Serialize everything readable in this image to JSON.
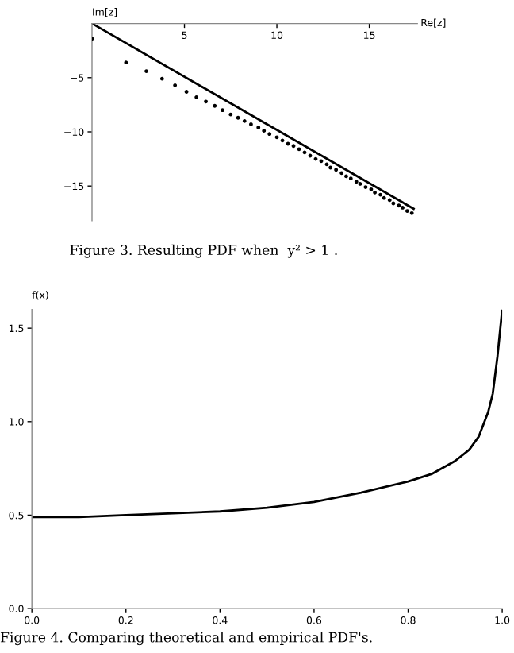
{
  "chart_data": [
    {
      "type": "scatter",
      "xlabel": "Re[z]",
      "ylabel": "Im[z]",
      "xlim": [
        0,
        17.6
      ],
      "ylim": [
        -18.2,
        0
      ],
      "xticks": [
        5,
        10,
        15
      ],
      "yticks": [
        {
          "value": -5,
          "label": "−5"
        },
        {
          "value": -10,
          "label": "−10"
        },
        {
          "value": -15,
          "label": "−15"
        }
      ],
      "grid": false,
      "legend": false,
      "annotations": [
        "Figure 3. Resulting PDF when  y² > 1 ."
      ],
      "series": [
        {
          "type": "scatter",
          "marker": "circle",
          "color": "#000000",
          "x": [
            0,
            1.84,
            2.94,
            3.79,
            4.49,
            5.11,
            5.65,
            6.16,
            6.64,
            7.06,
            7.5,
            7.9,
            8.25,
            8.6,
            9.0,
            9.3,
            9.6,
            10.0,
            10.3,
            10.6,
            10.9,
            11.2,
            11.5,
            11.8,
            12.1,
            12.4,
            12.7,
            12.9,
            13.2,
            13.5,
            13.75,
            14.0,
            14.3,
            14.5,
            14.8,
            15.1,
            15.3,
            15.6,
            15.8,
            16.1,
            16.3,
            16.6,
            16.8,
            17.05,
            17.3
          ],
          "values": [
            -1.4,
            -3.6,
            -4.4,
            -5.1,
            -5.7,
            -6.3,
            -6.8,
            -7.2,
            -7.6,
            -8.0,
            -8.4,
            -8.7,
            -9.0,
            -9.3,
            -9.6,
            -9.9,
            -10.2,
            -10.5,
            -10.8,
            -11.1,
            -11.3,
            -11.6,
            -11.9,
            -12.2,
            -12.5,
            -12.7,
            -13.0,
            -13.3,
            -13.5,
            -13.8,
            -14.1,
            -14.3,
            -14.6,
            -14.8,
            -15.1,
            -15.3,
            -15.6,
            -15.8,
            -16.1,
            -16.3,
            -16.6,
            -16.8,
            -17.0,
            -17.3,
            -17.5
          ]
        },
        {
          "type": "line",
          "marker": "none",
          "line_style": "solid",
          "color": "#000000",
          "x": [
            0,
            17.4
          ],
          "values": [
            0,
            -17.1
          ]
        }
      ]
    },
    {
      "type": "line",
      "ylabel": "f(x)",
      "xlim": [
        0,
        1
      ],
      "ylim": [
        0,
        1.6
      ],
      "xticks": [
        {
          "value": 0,
          "label": "0.0"
        },
        0.2,
        0.4,
        0.6,
        0.8,
        {
          "value": 1,
          "label": "1.0"
        }
      ],
      "yticks": [
        {
          "value": 0,
          "label": "0.0"
        },
        0.5,
        {
          "value": 1,
          "label": "1.0"
        },
        1.5
      ],
      "grid": false,
      "legend": false,
      "line_style": "solid",
      "marker": "none",
      "annotations": [
        "Figure 4. Comparing theoretical and empirical PDF's."
      ],
      "series": [
        {
          "color": "#000000",
          "x": [
            0,
            0.1,
            0.2,
            0.3,
            0.4,
            0.5,
            0.6,
            0.7,
            0.8,
            0.85,
            0.9,
            0.93,
            0.95,
            0.97,
            0.98,
            0.99,
            1.0
          ],
          "values": [
            0.49,
            0.49,
            0.5,
            0.51,
            0.52,
            0.54,
            0.57,
            0.62,
            0.68,
            0.72,
            0.79,
            0.85,
            0.92,
            1.05,
            1.15,
            1.35,
            1.6
          ]
        }
      ]
    }
  ]
}
